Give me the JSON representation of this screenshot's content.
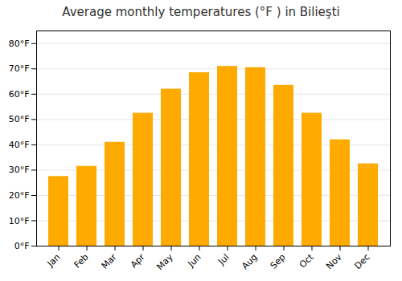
{
  "chart_data": {
    "type": "bar",
    "title": "Average monthly temperatures (°F ) in Bilieşti",
    "categories": [
      "Jan",
      "Feb",
      "Mar",
      "Apr",
      "May",
      "Jun",
      "Jul",
      "Aug",
      "Sep",
      "Oct",
      "Nov",
      "Dec"
    ],
    "values": [
      27.5,
      31.5,
      41.0,
      52.5,
      62.0,
      68.5,
      71.0,
      70.5,
      63.5,
      52.5,
      42.0,
      32.5
    ],
    "color": "#FFAA00",
    "ylim": [
      0,
      85
    ],
    "yticks": [
      {
        "value": 0,
        "label": "0°F"
      },
      {
        "value": 10,
        "label": "10°F"
      },
      {
        "value": 20,
        "label": "20°F"
      },
      {
        "value": 30,
        "label": "30°F"
      },
      {
        "value": 40,
        "label": "40°F"
      },
      {
        "value": 50,
        "label": "50°F"
      },
      {
        "value": 60,
        "label": "60°F"
      },
      {
        "value": 70,
        "label": "70°F"
      },
      {
        "value": 80,
        "label": "80°F"
      }
    ],
    "grid": true
  }
}
